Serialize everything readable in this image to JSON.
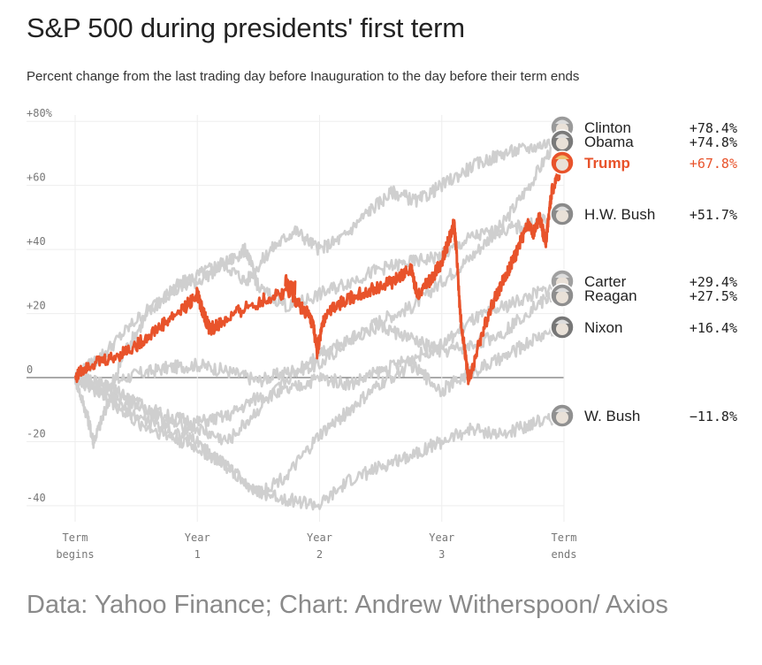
{
  "title": "S&P 500 during presidents' first term",
  "subtitle": "Percent change from the last trading day before Inauguration to the day before their term ends",
  "source": "Data: Yahoo Finance; Chart: Andrew Witherspoon/ Axios",
  "colors": {
    "highlight": "#e8532b",
    "other": "#cfcfcf",
    "zero": "#555555",
    "grid": "#eeeeee"
  },
  "chart_data": {
    "type": "line",
    "title": "S&P 500 during presidents' first term",
    "xlabel": "",
    "ylabel": "",
    "x_ticks": [
      {
        "x": 0,
        "lines": [
          "Term",
          "begins"
        ]
      },
      {
        "x": 1,
        "lines": [
          "Year",
          "1"
        ]
      },
      {
        "x": 2,
        "lines": [
          "Year",
          "2"
        ]
      },
      {
        "x": 3,
        "lines": [
          "Year",
          "3"
        ]
      },
      {
        "x": 4,
        "lines": [
          "Term",
          "ends"
        ]
      }
    ],
    "y_ticks": [
      {
        "value": 80,
        "label": "+80%"
      },
      {
        "value": 60,
        "label": "+60"
      },
      {
        "value": 40,
        "label": "+40"
      },
      {
        "value": 20,
        "label": "+20"
      },
      {
        "value": 0,
        "label": "0"
      },
      {
        "value": -20,
        "label": "-20"
      },
      {
        "value": -40,
        "label": "-40"
      }
    ],
    "xlim": [
      0,
      4
    ],
    "ylim": [
      -45,
      82
    ],
    "grid": true,
    "legend": "right",
    "series": [
      {
        "name": "Clinton",
        "label": "+78.4%",
        "highlight": false,
        "icon": "clinton-face-icon",
        "points": [
          [
            0,
            0
          ],
          [
            0.25,
            -2
          ],
          [
            0.5,
            1
          ],
          [
            0.75,
            3
          ],
          [
            1,
            4
          ],
          [
            1.25,
            2
          ],
          [
            1.5,
            -1
          ],
          [
            1.75,
            2
          ],
          [
            2,
            4
          ],
          [
            2.25,
            12
          ],
          [
            2.5,
            18
          ],
          [
            2.75,
            22
          ],
          [
            3,
            30
          ],
          [
            3.25,
            38
          ],
          [
            3.5,
            48
          ],
          [
            3.75,
            62
          ],
          [
            4,
            78.4
          ]
        ]
      },
      {
        "name": "Obama",
        "label": "+74.8%",
        "highlight": false,
        "icon": "obama-face-icon",
        "points": [
          [
            0,
            0
          ],
          [
            0.1,
            -12
          ],
          [
            0.15,
            -20
          ],
          [
            0.25,
            -10
          ],
          [
            0.4,
            8
          ],
          [
            0.6,
            20
          ],
          [
            0.8,
            28
          ],
          [
            1,
            32
          ],
          [
            1.2,
            36
          ],
          [
            1.4,
            30
          ],
          [
            1.6,
            40
          ],
          [
            1.8,
            46
          ],
          [
            2,
            40
          ],
          [
            2.2,
            44
          ],
          [
            2.4,
            52
          ],
          [
            2.6,
            58
          ],
          [
            2.8,
            55
          ],
          [
            3,
            60
          ],
          [
            3.25,
            66
          ],
          [
            3.5,
            70
          ],
          [
            3.75,
            72
          ],
          [
            4,
            74.8
          ]
        ]
      },
      {
        "name": "Trump",
        "label": "+67.8%",
        "highlight": true,
        "icon": "trump-face-icon",
        "points": [
          [
            0,
            0
          ],
          [
            0.1,
            4
          ],
          [
            0.3,
            6
          ],
          [
            0.5,
            10
          ],
          [
            0.7,
            16
          ],
          [
            0.9,
            22
          ],
          [
            1,
            26
          ],
          [
            1.05,
            20
          ],
          [
            1.1,
            15
          ],
          [
            1.2,
            17
          ],
          [
            1.4,
            22
          ],
          [
            1.6,
            25
          ],
          [
            1.8,
            28
          ],
          [
            1.72,
            30
          ],
          [
            1.8,
            24
          ],
          [
            1.9,
            20
          ],
          [
            1.95,
            16
          ],
          [
            1.98,
            8
          ],
          [
            2,
            12
          ],
          [
            2.05,
            20
          ],
          [
            2.2,
            24
          ],
          [
            2.4,
            27
          ],
          [
            2.6,
            30
          ],
          [
            2.75,
            34
          ],
          [
            2.8,
            26
          ],
          [
            2.9,
            30
          ],
          [
            3,
            36
          ],
          [
            3.05,
            42
          ],
          [
            3.1,
            48
          ],
          [
            3.12,
            40
          ],
          [
            3.15,
            20
          ],
          [
            3.2,
            5
          ],
          [
            3.22,
            -1
          ],
          [
            3.3,
            10
          ],
          [
            3.4,
            22
          ],
          [
            3.5,
            30
          ],
          [
            3.6,
            38
          ],
          [
            3.7,
            48
          ],
          [
            3.75,
            45
          ],
          [
            3.8,
            50
          ],
          [
            3.85,
            42
          ],
          [
            3.9,
            58
          ],
          [
            4,
            67.8
          ]
        ]
      },
      {
        "name": "H.W. Bush",
        "label": "+51.7%",
        "highlight": false,
        "icon": "hw-bush-face-icon",
        "points": [
          [
            0,
            0
          ],
          [
            0.25,
            8
          ],
          [
            0.5,
            18
          ],
          [
            0.75,
            26
          ],
          [
            1,
            30
          ],
          [
            1.25,
            36
          ],
          [
            1.4,
            40
          ],
          [
            1.5,
            28
          ],
          [
            1.75,
            22
          ],
          [
            2,
            26
          ],
          [
            2.25,
            30
          ],
          [
            2.5,
            34
          ],
          [
            2.75,
            36
          ],
          [
            3,
            38
          ],
          [
            3.25,
            44
          ],
          [
            3.5,
            46
          ],
          [
            3.75,
            48
          ],
          [
            4,
            51.7
          ]
        ]
      },
      {
        "name": "Carter",
        "label": "+29.4%",
        "highlight": false,
        "icon": "carter-face-icon",
        "points": [
          [
            0,
            0
          ],
          [
            0.25,
            -4
          ],
          [
            0.5,
            -8
          ],
          [
            0.75,
            -12
          ],
          [
            1,
            -14
          ],
          [
            1.25,
            -12
          ],
          [
            1.5,
            -6
          ],
          [
            1.75,
            -4
          ],
          [
            2,
            0
          ],
          [
            2.25,
            -2
          ],
          [
            2.5,
            2
          ],
          [
            2.75,
            6
          ],
          [
            3,
            10
          ],
          [
            3.25,
            18
          ],
          [
            3.5,
            22
          ],
          [
            3.75,
            26
          ],
          [
            4,
            29.4
          ]
        ]
      },
      {
        "name": "Reagan",
        "label": "+27.5%",
        "highlight": false,
        "icon": "reagan-face-icon",
        "points": [
          [
            0,
            0
          ],
          [
            0.25,
            -2
          ],
          [
            0.5,
            -8
          ],
          [
            0.75,
            -14
          ],
          [
            1,
            -16
          ],
          [
            1.25,
            -20
          ],
          [
            1.5,
            -10
          ],
          [
            1.75,
            0
          ],
          [
            2,
            8
          ],
          [
            2.25,
            12
          ],
          [
            2.5,
            16
          ],
          [
            2.75,
            12
          ],
          [
            3,
            8
          ],
          [
            3.25,
            10
          ],
          [
            3.5,
            14
          ],
          [
            3.75,
            22
          ],
          [
            4,
            27.5
          ]
        ]
      },
      {
        "name": "Nixon",
        "label": "+16.4%",
        "highlight": false,
        "icon": "nixon-face-icon",
        "points": [
          [
            0,
            0
          ],
          [
            0.25,
            -6
          ],
          [
            0.5,
            -14
          ],
          [
            0.75,
            -18
          ],
          [
            1,
            -22
          ],
          [
            1.25,
            -28
          ],
          [
            1.5,
            -36
          ],
          [
            1.75,
            -30
          ],
          [
            2,
            -18
          ],
          [
            2.25,
            -10
          ],
          [
            2.5,
            -2
          ],
          [
            2.75,
            4
          ],
          [
            3,
            -4
          ],
          [
            3.25,
            2
          ],
          [
            3.5,
            6
          ],
          [
            3.75,
            12
          ],
          [
            4,
            16.4
          ]
        ]
      },
      {
        "name": "W. Bush",
        "label": "−11.8%",
        "highlight": false,
        "icon": "w-bush-face-icon",
        "points": [
          [
            0,
            0
          ],
          [
            0.25,
            -6
          ],
          [
            0.5,
            -12
          ],
          [
            0.75,
            -16
          ],
          [
            1,
            -20
          ],
          [
            1.25,
            -28
          ],
          [
            1.5,
            -36
          ],
          [
            1.75,
            -38
          ],
          [
            2,
            -40
          ],
          [
            2.25,
            -32
          ],
          [
            2.5,
            -28
          ],
          [
            2.75,
            -24
          ],
          [
            3,
            -20
          ],
          [
            3.25,
            -16
          ],
          [
            3.5,
            -18
          ],
          [
            3.75,
            -14
          ],
          [
            4,
            -11.8
          ]
        ]
      }
    ]
  }
}
